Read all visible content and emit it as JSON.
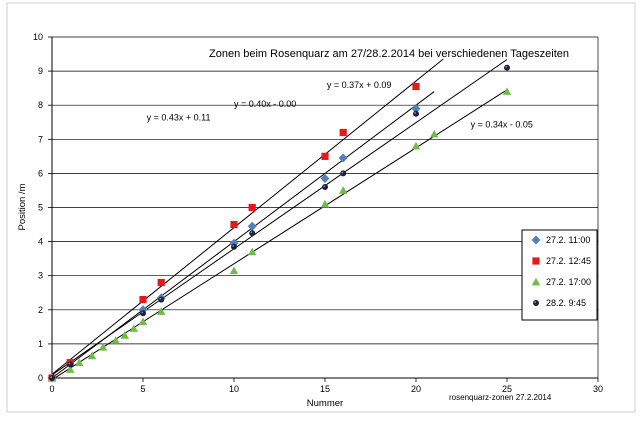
{
  "chart_data": {
    "type": "scatter",
    "title": "Zonen beim Rosenquarz  am 27/28.2.2014 bei verschiedenen Tageszeiten",
    "xlabel": "Nummer",
    "ylabel": "Position /m",
    "xlim": [
      0,
      30
    ],
    "ylim": [
      0,
      10
    ],
    "xticks": [
      "0",
      "5",
      "10",
      "15",
      "20",
      "25",
      "30"
    ],
    "yticks": [
      "0",
      "1",
      "2",
      "3",
      "4",
      "5",
      "6",
      "7",
      "8",
      "9",
      "10"
    ],
    "grid": "horizontal",
    "legend_position": "right",
    "footer": "rosenquarz-zonen 27.2.2014",
    "series": [
      {
        "name": "27.2. 11:00",
        "marker": "diamond",
        "color": "#4F81BD",
        "points": [
          [
            0,
            0
          ],
          [
            5,
            2.0
          ],
          [
            6,
            2.35
          ],
          [
            10,
            3.95
          ],
          [
            11,
            4.45
          ],
          [
            15,
            5.85
          ],
          [
            16,
            6.45
          ],
          [
            20,
            7.9
          ]
        ]
      },
      {
        "name": "27.2. 12:45",
        "marker": "square",
        "color": "#E31A1C",
        "points": [
          [
            0,
            0
          ],
          [
            1,
            0.45
          ],
          [
            5,
            2.3
          ],
          [
            6,
            2.8
          ],
          [
            10,
            4.5
          ],
          [
            11,
            5.0
          ],
          [
            15,
            6.5
          ],
          [
            16,
            7.2
          ],
          [
            20,
            8.55
          ]
        ]
      },
      {
        "name": "27.2. 17:00",
        "marker": "triangle",
        "color": "#6DBE45",
        "points": [
          [
            0,
            0
          ],
          [
            1,
            0.25
          ],
          [
            1.5,
            0.45
          ],
          [
            2.2,
            0.65
          ],
          [
            2.8,
            0.9
          ],
          [
            3.5,
            1.1
          ],
          [
            4,
            1.25
          ],
          [
            4.5,
            1.45
          ],
          [
            5,
            1.65
          ],
          [
            6,
            1.95
          ],
          [
            10,
            3.15
          ],
          [
            11,
            3.7
          ],
          [
            15,
            5.1
          ],
          [
            16,
            5.5
          ],
          [
            20,
            6.8
          ],
          [
            21,
            7.15
          ],
          [
            25,
            8.4
          ]
        ]
      },
      {
        "name": "28.2.  9:45",
        "marker": "circle",
        "color": "#1F1F3F",
        "points": [
          [
            0,
            0
          ],
          [
            1,
            0.4
          ],
          [
            5,
            1.9
          ],
          [
            6,
            2.3
          ],
          [
            10,
            3.85
          ],
          [
            11,
            4.25
          ],
          [
            15,
            5.6
          ],
          [
            16,
            6.0
          ],
          [
            20,
            7.75
          ],
          [
            25,
            9.1
          ]
        ]
      }
    ],
    "trendlines": [
      {
        "label": "y = 0.43x + 0.11",
        "slope": 0.43,
        "intercept": 0.11,
        "x_end": 21.5,
        "label_at": [
          5.2,
          7.55
        ]
      },
      {
        "label": "y = 0.40x - 0.00",
        "slope": 0.4,
        "intercept": 0.0,
        "x_end": 21.0,
        "label_at": [
          10.0,
          7.95
        ]
      },
      {
        "label": "y = 0.37x + 0.09",
        "slope": 0.37,
        "intercept": 0.09,
        "x_end": 25.0,
        "label_at": [
          15.1,
          8.5
        ]
      },
      {
        "label": "y = 0.34x - 0.05",
        "slope": 0.34,
        "intercept": -0.05,
        "x_end": 25.0,
        "label_at": [
          23.0,
          7.35
        ]
      }
    ]
  }
}
